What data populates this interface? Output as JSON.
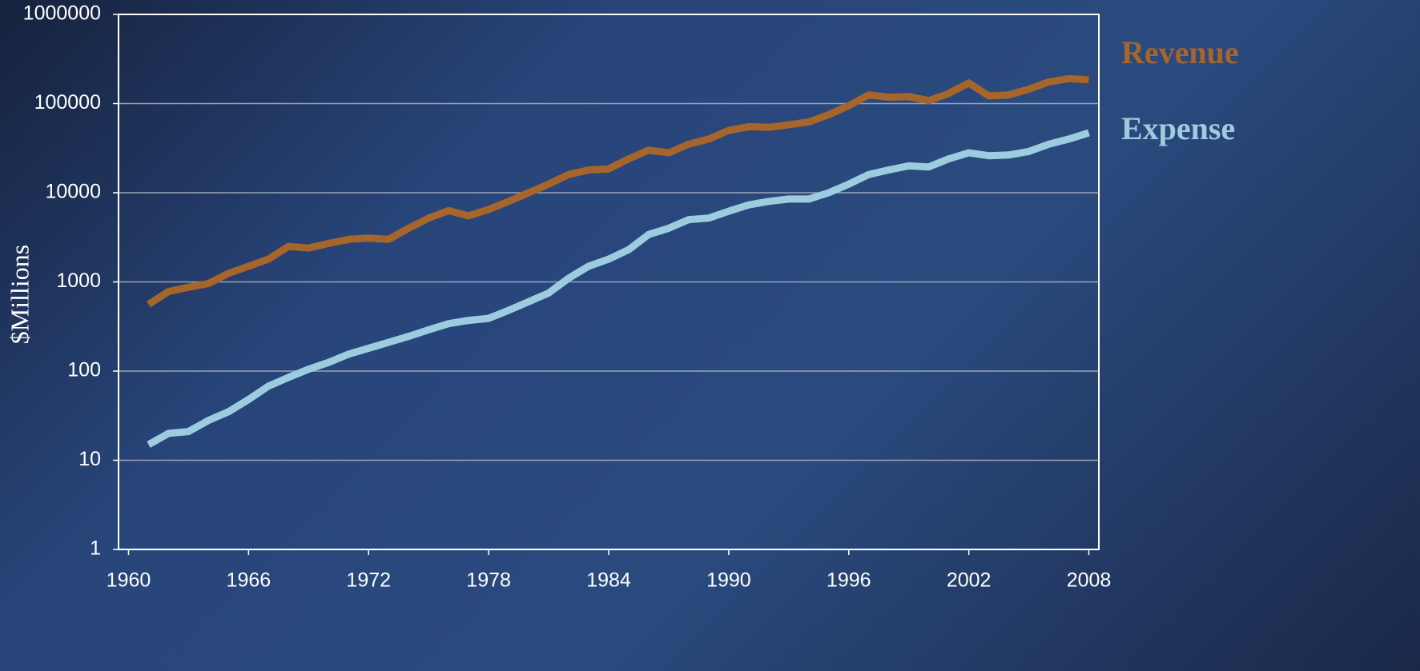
{
  "chart_data": {
    "type": "line",
    "y_label": "$Millions",
    "log_y": true,
    "grid": true,
    "legend": "right",
    "xlim": [
      1959.5,
      2008.5
    ],
    "xticks": [
      1960,
      1966,
      1972,
      1978,
      1984,
      1990,
      1996,
      2002,
      2008
    ],
    "ylim": [
      1,
      1000000
    ],
    "yticks": [
      1,
      10,
      100,
      1000,
      10000,
      100000,
      1000000
    ],
    "x": [
      1961,
      1962,
      1963,
      1964,
      1965,
      1966,
      1967,
      1968,
      1969,
      1970,
      1971,
      1972,
      1973,
      1974,
      1975,
      1976,
      1977,
      1978,
      1979,
      1980,
      1981,
      1982,
      1983,
      1984,
      1985,
      1986,
      1987,
      1988,
      1989,
      1990,
      1991,
      1992,
      1993,
      1994,
      1995,
      1996,
      1997,
      1998,
      1999,
      2000,
      2001,
      2002,
      2003,
      2004,
      2005,
      2006,
      2007,
      2008
    ],
    "series": [
      {
        "name": "Revenue",
        "color": "#a5652b",
        "values": [
          560,
          780,
          870,
          960,
          1250,
          1500,
          1800,
          2500,
          2400,
          2700,
          3000,
          3100,
          3000,
          4000,
          5200,
          6300,
          5500,
          6500,
          8000,
          10000,
          12500,
          16000,
          18000,
          18500,
          24000,
          30000,
          28000,
          35000,
          40000,
          50000,
          55000,
          54000,
          58000,
          62000,
          75000,
          95000,
          125000,
          118000,
          120000,
          108000,
          130000,
          170000,
          122000,
          125000,
          145000,
          175000,
          190000,
          185000
        ]
      },
      {
        "name": "Expense",
        "color": "#9dcbdf",
        "values": [
          15,
          20,
          21,
          28,
          35,
          48,
          68,
          85,
          105,
          125,
          155,
          180,
          210,
          245,
          290,
          340,
          370,
          390,
          480,
          600,
          750,
          1100,
          1500,
          1800,
          2300,
          3400,
          4000,
          5000,
          5200,
          6200,
          7300,
          8000,
          8500,
          8500,
          10000,
          12500,
          16000,
          18000,
          20000,
          19500,
          24000,
          28000,
          26000,
          26500,
          29000,
          35000,
          40000,
          47000
        ]
      }
    ]
  }
}
